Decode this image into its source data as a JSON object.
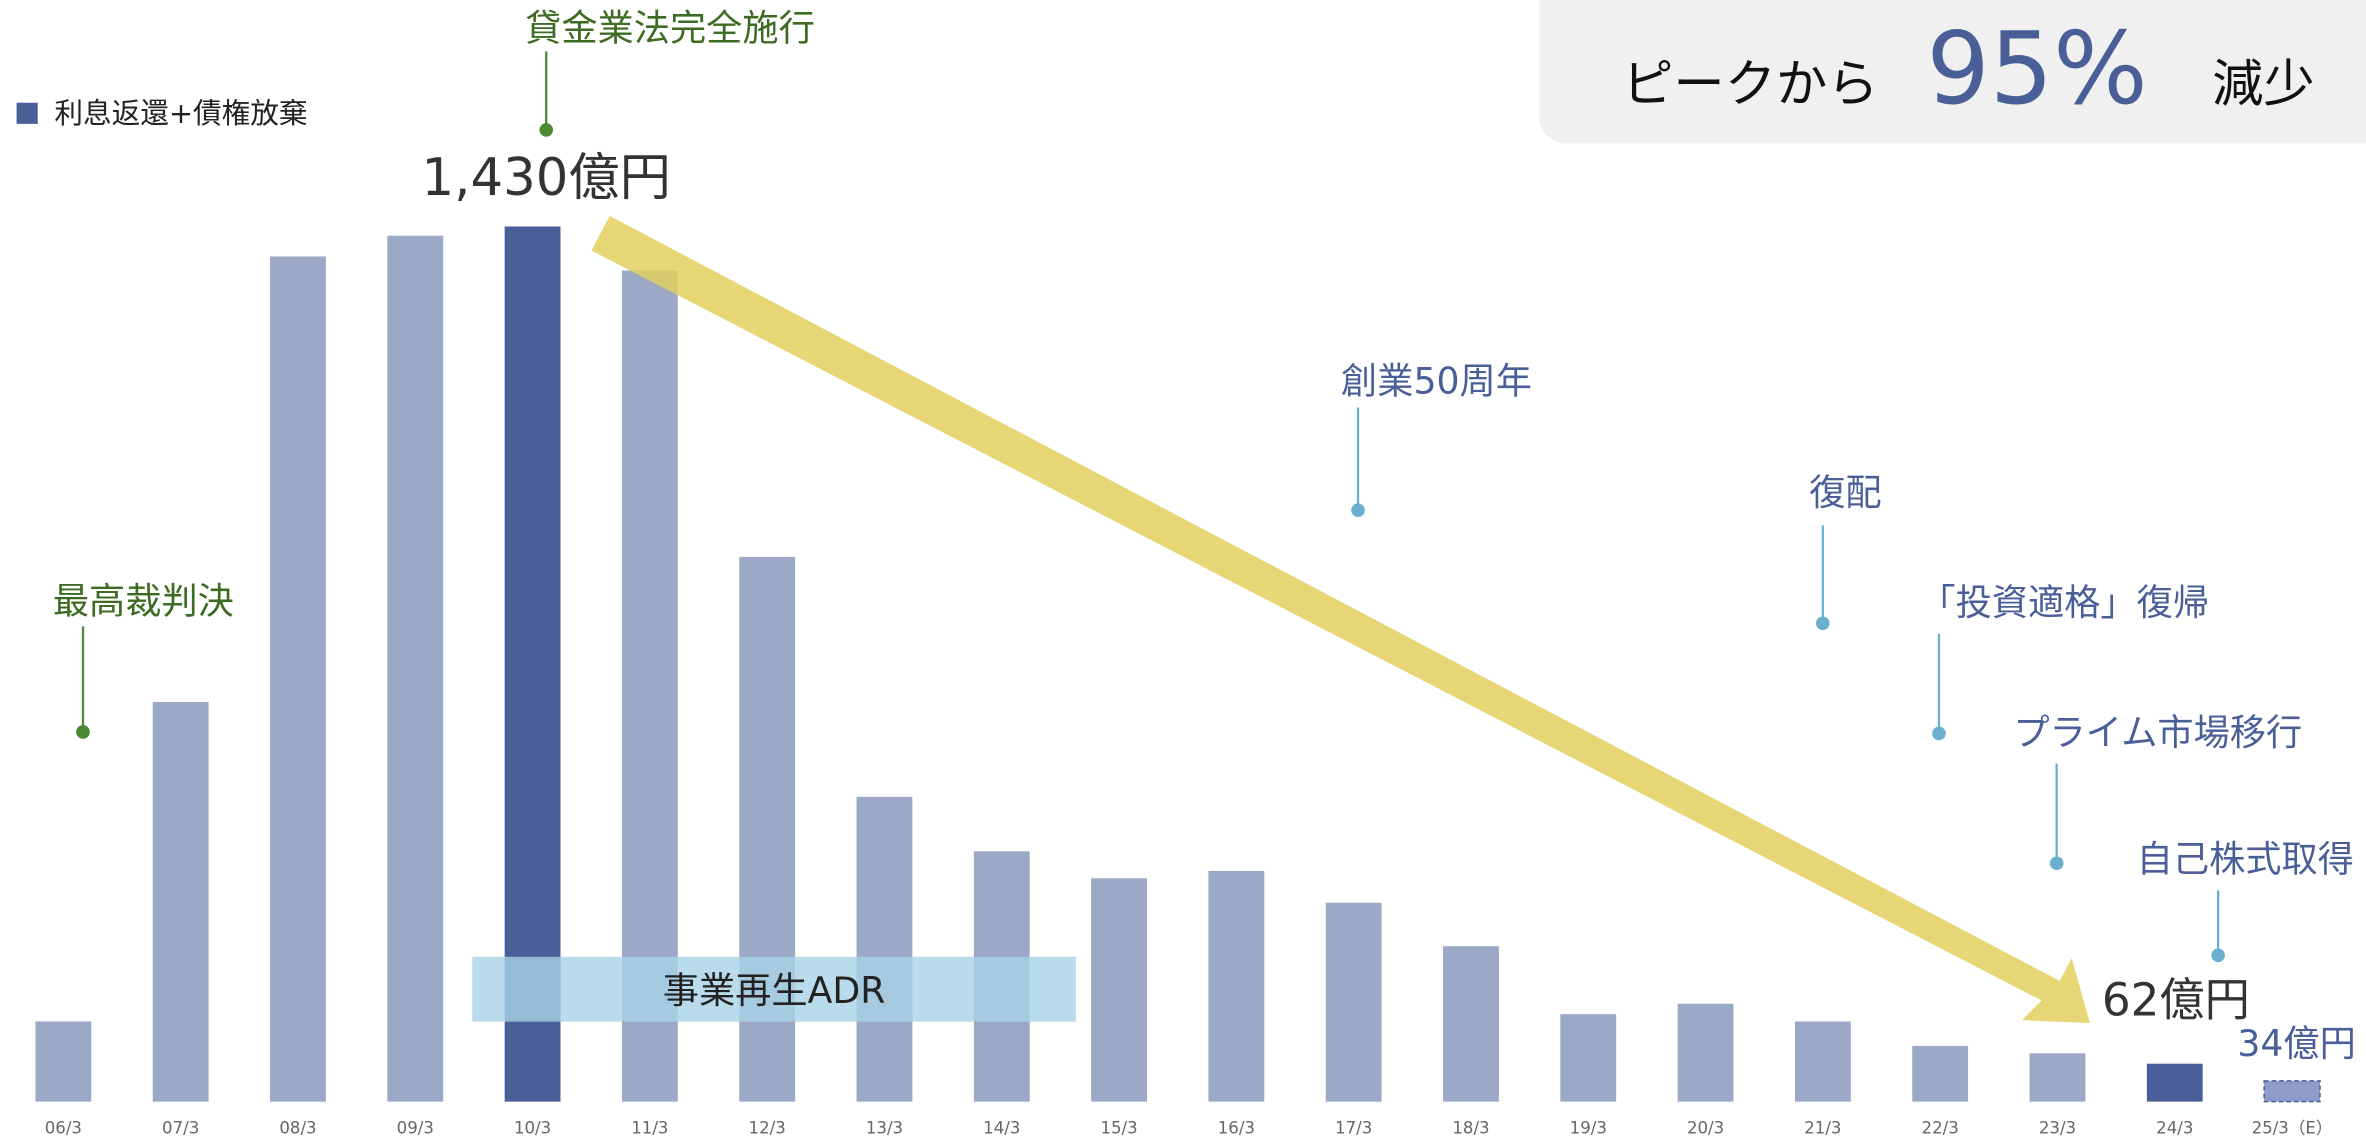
{
  "chart_data": {
    "type": "bar",
    "series": [
      {
        "name": "利息返還+債権放棄",
        "color": "#4a5f98",
        "categories": [
          "06/3",
          "07/3",
          "08/3",
          "09/3",
          "10/3",
          "11/3",
          "12/3",
          "13/3",
          "14/3",
          "15/3",
          "16/3",
          "17/3",
          "18/3",
          "19/3",
          "20/3",
          "21/3",
          "22/3",
          "23/3",
          "24/3",
          "25/3（E）"
        ],
        "values": [
          131,
          653,
          1381,
          1415,
          1430,
          1358,
          890,
          498,
          409,
          365,
          377,
          325,
          254,
          143,
          160,
          131,
          91,
          79,
          62,
          34
        ],
        "value_labels": [
          null,
          null,
          null,
          null,
          "1,430億円",
          null,
          null,
          null,
          null,
          null,
          null,
          null,
          null,
          null,
          null,
          null,
          null,
          null,
          "62億円",
          "34億円"
        ],
        "colors": [
          "#9ba8c6",
          "#9ba8c6",
          "#9ba8c6",
          "#9ba8c6",
          "#4a5f98",
          "#9ba8c6",
          "#9ba8c6",
          "#9ba8c6",
          "#9ba8c6",
          "#9ba8c6",
          "#9ba8c6",
          "#9ba8c6",
          "#9ba8c6",
          "#9ba8c6",
          "#9ba8c6",
          "#9ba8c6",
          "#9ba8c6",
          "#9ba8c6",
          "#4a5f98",
          "#8e9ccb"
        ]
      }
    ],
    "ylim": [
      0,
      1500
    ],
    "annotations": [
      {
        "text": "貸金業法完全施行",
        "color": "#3d6b22"
      },
      {
        "text": "最高裁判決",
        "color": "#3d6b22"
      },
      {
        "text": "創業50周年",
        "color": "#4a5f98"
      },
      {
        "text": "復配",
        "color": "#4a5f98"
      },
      {
        "text": "「投資適格」復帰",
        "color": "#4a5f98"
      },
      {
        "text": "プライム市場移行",
        "color": "#4a5f98"
      },
      {
        "text": "自己株式取得",
        "color": "#4a5f98"
      }
    ],
    "band_label": "事業再生ADR",
    "callout": {
      "prefix": "ピークから",
      "figure": "95%",
      "suffix": "減少"
    }
  }
}
